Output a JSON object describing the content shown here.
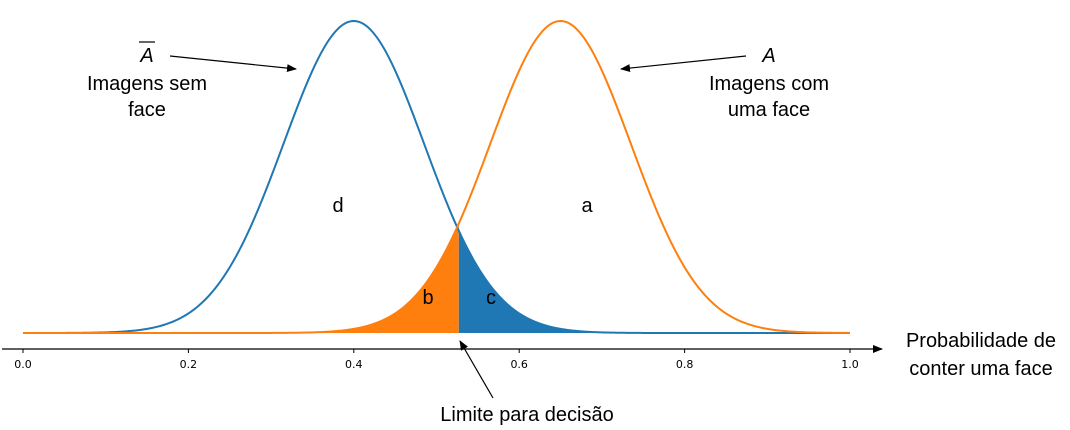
{
  "chart_data": {
    "type": "area",
    "xlim": [
      0.0,
      1.0
    ],
    "x_ticks": [
      0.0,
      0.2,
      0.4,
      0.6,
      0.8,
      1.0
    ],
    "x_tick_labels": [
      "0.0",
      "0.2",
      "0.4",
      "0.6",
      "0.8",
      "1.0"
    ],
    "xlabel_line1": "Probabilidade de",
    "xlabel_line2": "conter uma face",
    "threshold": 0.527,
    "threshold_label": "Limite para decisão",
    "series": [
      {
        "symbol": "A",
        "overbar": true,
        "name_line1": "Imagens sem",
        "name_line2": "face",
        "mean": 0.4,
        "sd": 0.085,
        "color": "#1f77b4"
      },
      {
        "symbol": "A",
        "overbar": false,
        "name_line1": "Imagens com",
        "name_line2": "uma face",
        "mean": 0.65,
        "sd": 0.085,
        "color": "#ff7f0e"
      }
    ],
    "regions": {
      "a": "a",
      "b": "b",
      "c": "c",
      "d": "d"
    }
  }
}
